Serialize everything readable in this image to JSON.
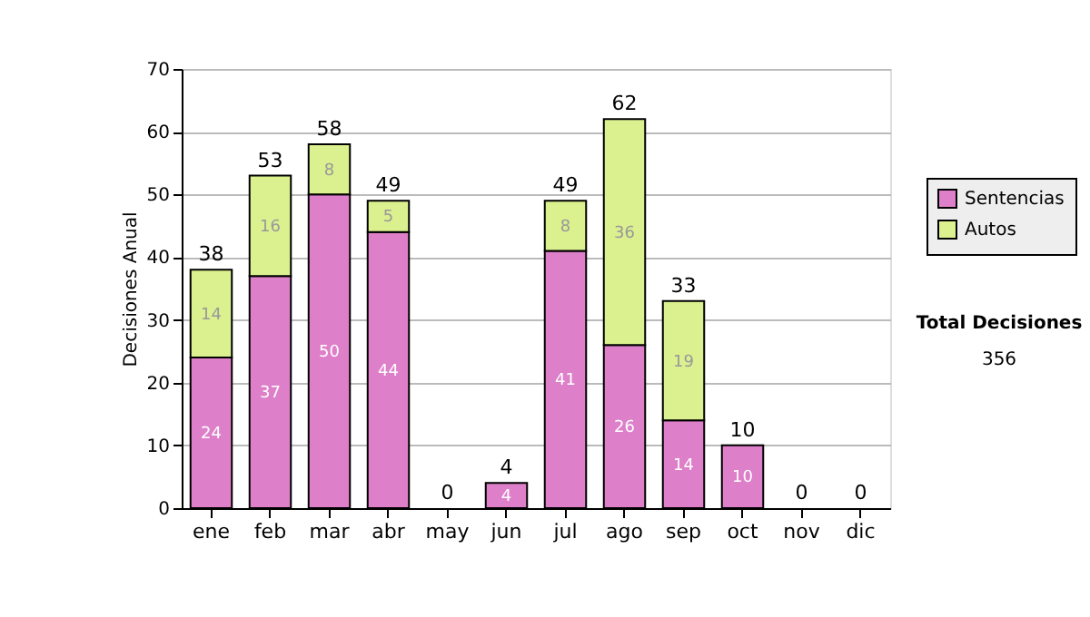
{
  "chart_data": {
    "type": "bar",
    "stacked": true,
    "ylabel": "Decisiones Anual",
    "categories": [
      "ene",
      "feb",
      "mar",
      "abr",
      "may",
      "jun",
      "jul",
      "ago",
      "sep",
      "oct",
      "nov",
      "dic"
    ],
    "series": [
      {
        "name": "Sentencias",
        "color": "#dd7fc9",
        "values": [
          24,
          37,
          50,
          44,
          0,
          4,
          41,
          26,
          14,
          10,
          0,
          0
        ],
        "value_labels": [
          "24",
          "37",
          "50",
          "44",
          null,
          "4",
          "41",
          "26",
          "14",
          "10",
          null,
          null
        ]
      },
      {
        "name": "Autos",
        "color": "#dbf08f",
        "values": [
          14,
          16,
          8,
          5,
          0,
          0,
          8,
          36,
          19,
          0,
          0,
          0
        ],
        "value_labels": [
          "14",
          "16",
          "8",
          "5",
          null,
          null,
          "8",
          "36",
          "19",
          null,
          null,
          null
        ]
      }
    ],
    "totals": [
      "38",
      "53",
      "58",
      "49",
      "0",
      "4",
      "49",
      "62",
      "33",
      "10",
      "0",
      "0"
    ],
    "ylim": [
      0,
      70
    ],
    "yticks": [
      0,
      10,
      20,
      30,
      40,
      50,
      60,
      70
    ],
    "grid": "y",
    "legend": "right",
    "annotations": [
      "Total Decisiones",
      "356"
    ]
  }
}
